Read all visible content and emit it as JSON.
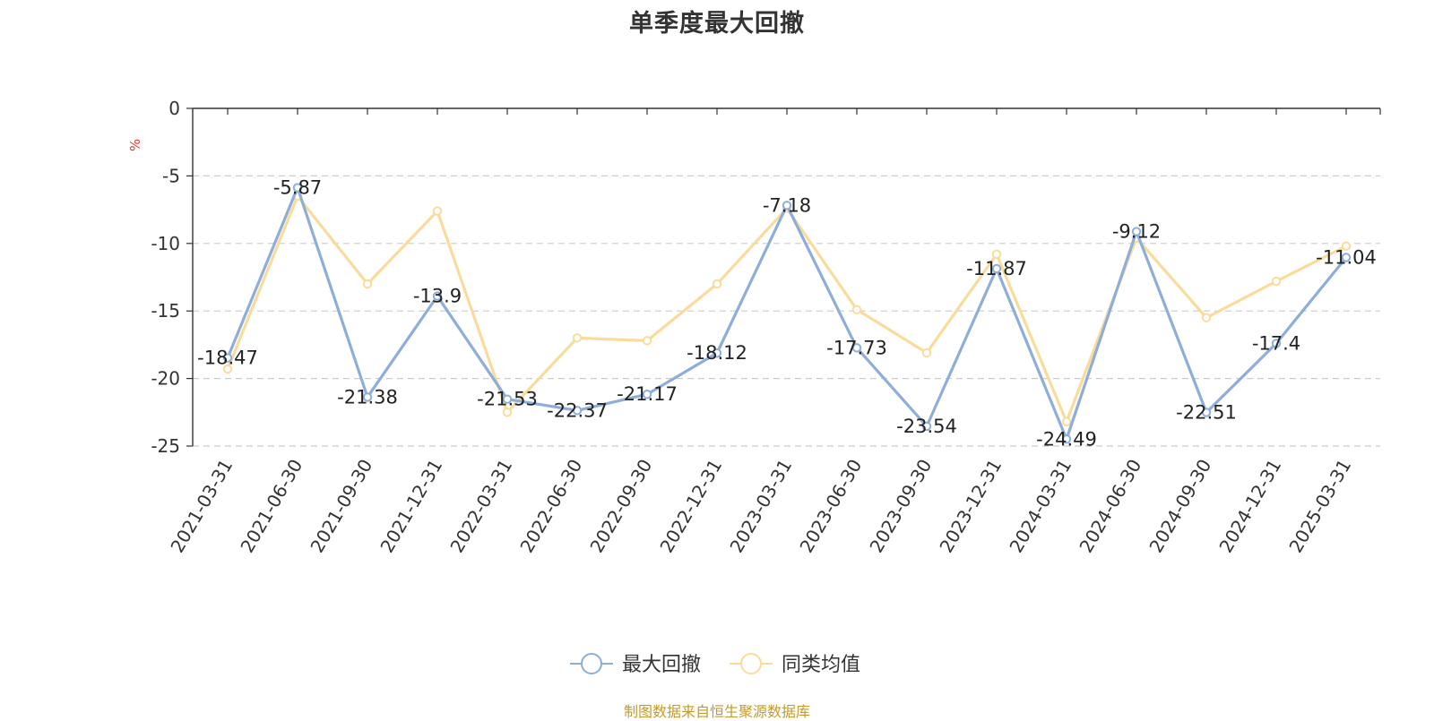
{
  "chart_data": {
    "type": "line",
    "title": "单季度最大回撤",
    "ylabel": "%",
    "xlabel": "",
    "ylim": [
      -25,
      0
    ],
    "yticks": [
      0,
      -5,
      -10,
      -15,
      -20,
      -25
    ],
    "grid": true,
    "legend_position": "bottom-center",
    "categories": [
      "2021-03-31",
      "2021-06-30",
      "2021-09-30",
      "2021-12-31",
      "2022-03-31",
      "2022-06-30",
      "2022-09-30",
      "2022-12-31",
      "2023-03-31",
      "2023-06-30",
      "2023-09-30",
      "2023-12-31",
      "2024-03-31",
      "2024-06-30",
      "2024-09-30",
      "2024-12-31",
      "2025-03-31"
    ],
    "series": [
      {
        "name": "最大回撤",
        "color": "#8eaed9",
        "show_labels": true,
        "values": [
          -18.47,
          -5.87,
          -21.38,
          -13.9,
          -21.53,
          -22.37,
          -21.17,
          -18.12,
          -7.18,
          -17.73,
          -23.54,
          -11.87,
          -24.49,
          -9.12,
          -22.51,
          -17.4,
          -11.04
        ]
      },
      {
        "name": "同类均值",
        "color": "#f9dc9c",
        "show_labels": false,
        "values": [
          -19.3,
          -6.5,
          -13.0,
          -7.6,
          -22.5,
          -17.0,
          -17.2,
          -13.0,
          -7.4,
          -14.9,
          -18.1,
          -10.8,
          -23.2,
          -9.6,
          -15.5,
          -12.8,
          -10.2
        ]
      }
    ]
  },
  "source": "制图数据来自恒生聚源数据库"
}
